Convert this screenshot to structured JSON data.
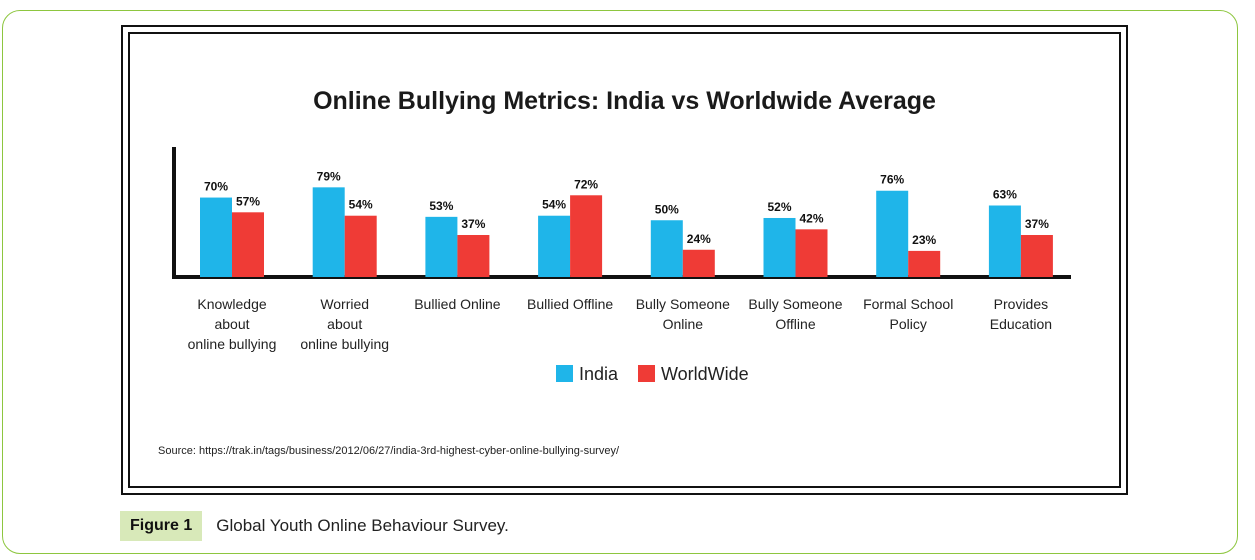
{
  "chart_data": {
    "type": "bar",
    "title": "Online Bullying Metrics: India vs Worldwide Average",
    "categories": [
      [
        "Knowledge",
        "about",
        "online bullying"
      ],
      [
        "Worried",
        "about",
        "online bullying"
      ],
      [
        "Bullied Online"
      ],
      [
        "Bullied Offline"
      ],
      [
        "Bully Someone",
        "Online"
      ],
      [
        "Bully Someone",
        "Offline"
      ],
      [
        "Formal School",
        "Policy"
      ],
      [
        "Provides",
        "Education"
      ]
    ],
    "series": [
      {
        "name": "India",
        "color": "#1fb5e9",
        "values": [
          70,
          79,
          53,
          54,
          50,
          52,
          76,
          63
        ]
      },
      {
        "name": "WorldWide",
        "color": "#ef3b36",
        "values": [
          57,
          54,
          37,
          72,
          24,
          42,
          23,
          37
        ]
      }
    ],
    "value_suffix": "%",
    "ylim": [
      0,
      100
    ],
    "grid": false,
    "legend_position": "bottom"
  },
  "source": "Source: https://trak.in/tags/business/2012/06/27/india-3rd-highest-cyber-online-bullying-survey/",
  "caption": {
    "label": "Figure 1",
    "text": "Global Youth Online Behaviour Survey."
  }
}
